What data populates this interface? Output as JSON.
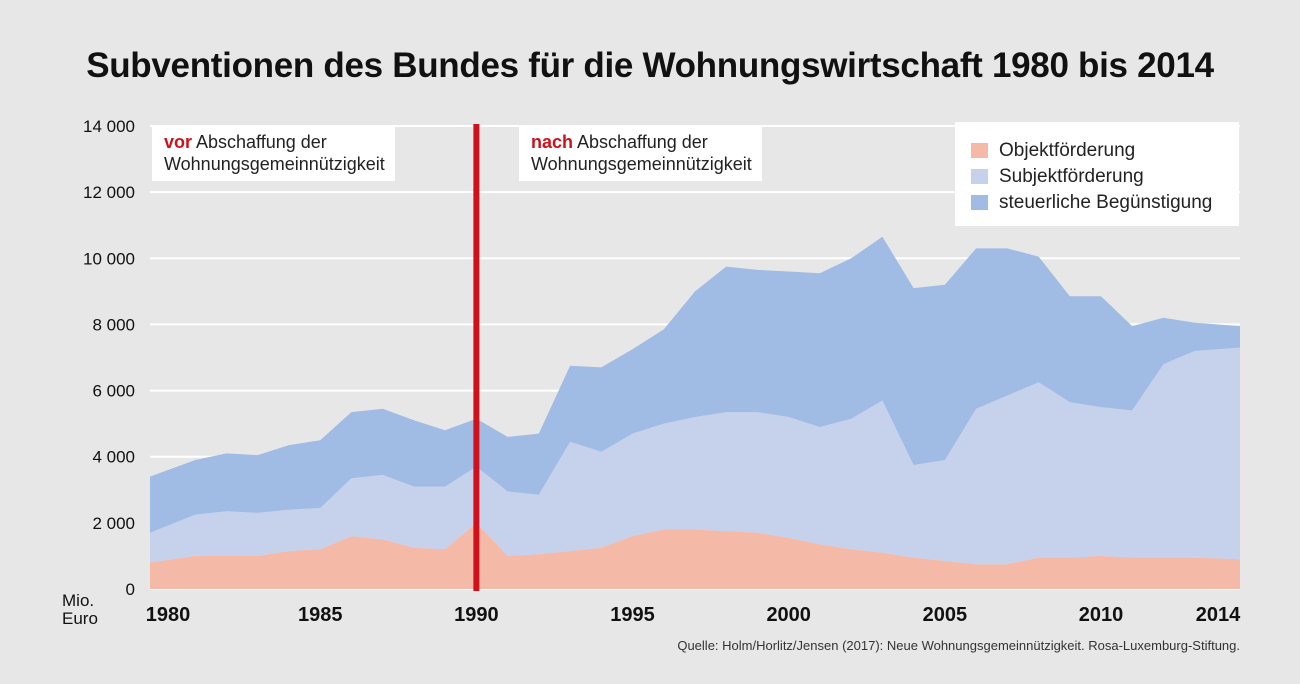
{
  "chart_data": {
    "type": "area",
    "stacked": true,
    "title": "Subventionen des Bundes für die Wohnungswirtschaft 1980 bis 2014",
    "ylabel": "Mio. Euro",
    "ylabel_lines": [
      "Mio.",
      "Euro"
    ],
    "ylim": [
      0,
      14000
    ],
    "yticks": [
      0,
      2000,
      4000,
      6000,
      8000,
      10000,
      12000,
      14000
    ],
    "ytick_labels": [
      "0",
      "2 000",
      "4 000",
      "6 000",
      "8 000",
      "10 000",
      "12 000",
      "14 000"
    ],
    "xticks": [
      1980,
      1985,
      1990,
      1995,
      2000,
      2005,
      2010,
      2014
    ],
    "xtick_labels": [
      "1980",
      "1985",
      "1990",
      "1995",
      "2000",
      "2005",
      "2010",
      "2014"
    ],
    "grid": true,
    "x": [
      1980,
      1981,
      1982,
      1983,
      1984,
      1985,
      1986,
      1987,
      1988,
      1989,
      1990,
      1991,
      1992,
      1993,
      1994,
      1995,
      1996,
      1997,
      1998,
      1999,
      2000,
      2001,
      2002,
      2003,
      2004,
      2005,
      2006,
      2007,
      2008,
      2009,
      2010,
      2011,
      2012,
      2013,
      2014
    ],
    "series": [
      {
        "name": "Objektförderung",
        "color": "#f5b9a8",
        "values": [
          800,
          1000,
          1000,
          1000,
          1150,
          1200,
          1600,
          1500,
          1250,
          1200,
          2000,
          1000,
          1050,
          1150,
          1250,
          1600,
          1800,
          1800,
          1750,
          1700,
          1550,
          1350,
          1200,
          1100,
          950,
          850,
          750,
          750,
          950,
          950,
          1000,
          950,
          950,
          950,
          900
        ]
      },
      {
        "name": "Subjektförderung",
        "color": "#c6d1ec",
        "values": [
          900,
          1250,
          1350,
          1300,
          1250,
          1250,
          1750,
          1950,
          1850,
          1900,
          1700,
          1950,
          1800,
          3300,
          2900,
          3100,
          3200,
          3400,
          3600,
          3650,
          3650,
          3550,
          3950,
          4600,
          2800,
          3050,
          4700,
          5100,
          5300,
          4700,
          4500,
          4450,
          5850,
          6250,
          6400
        ]
      },
      {
        "name": "steuerliche Begünstigung",
        "color": "#a0bbe4",
        "values": [
          1700,
          1650,
          1750,
          1750,
          1950,
          2050,
          2000,
          2000,
          2000,
          1700,
          1450,
          1650,
          1850,
          2300,
          2550,
          2550,
          2850,
          3800,
          4400,
          4300,
          4400,
          4650,
          4850,
          4950,
          5350,
          5300,
          4850,
          4450,
          3800,
          3200,
          3350,
          2550,
          1400,
          850,
          650
        ]
      }
    ]
  },
  "annotations": {
    "before": {
      "em": "vor",
      "line1_rest": " Abschaffung der",
      "line2": "Wohnungsgemeinnützigkeit"
    },
    "after": {
      "em": "nach",
      "line1_rest": " Abschaffung der",
      "line2": "Wohnungsgemeinnützigkeit"
    },
    "divider_year": 1990,
    "divider_color": "#d0101a"
  },
  "legend": {
    "items": [
      {
        "label": "Objektförderung",
        "color": "#f5b9a8"
      },
      {
        "label": "Subjektförderung",
        "color": "#c6d1ec"
      },
      {
        "label": "steuerliche Begünstigung",
        "color": "#a0bbe4"
      }
    ]
  },
  "source": "Quelle: Holm/Horlitz/Jensen (2017): Neue Wohnungsgemeinnützigkeit. Rosa-Luxemburg-Stiftung."
}
